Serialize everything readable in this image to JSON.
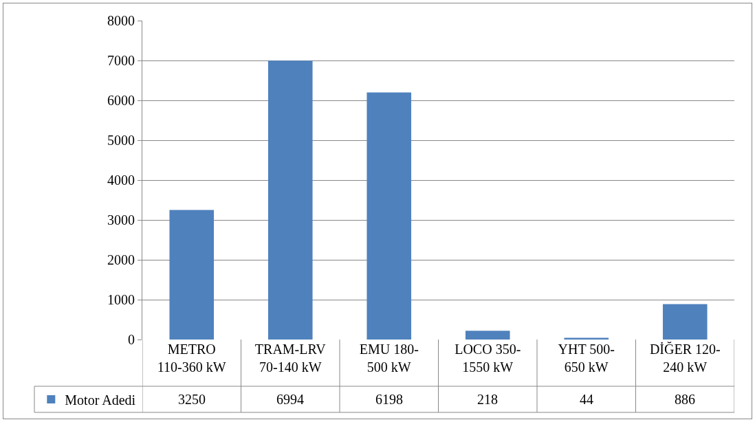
{
  "chart_data": {
    "type": "bar",
    "categories": [
      "METRO\n110-360 kW",
      "TRAM-LRV\n70-140 kW",
      "EMU 180-\n500 kW",
      "LOCO 350-\n1550 kW",
      "YHT 500-\n650 kW",
      "DİĞER 120-\n240 kW"
    ],
    "series": [
      {
        "name": "Motor Adedi",
        "color": "#4f81bd",
        "values": [
          3250,
          6994,
          6198,
          218,
          44,
          886
        ]
      }
    ],
    "ylim": [
      0,
      8000
    ],
    "yticks": [
      0,
      1000,
      2000,
      3000,
      4000,
      5000,
      6000,
      7000,
      8000
    ],
    "grid": "y",
    "legend": "bottom left",
    "data_labels": true
  }
}
